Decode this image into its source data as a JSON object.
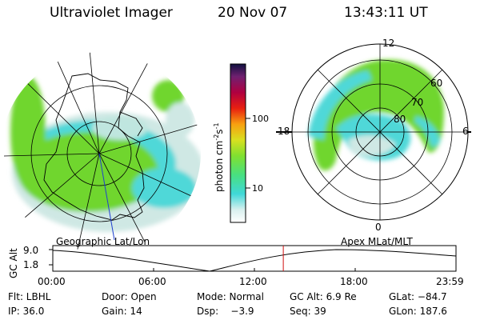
{
  "header": {
    "instrument": "Ultraviolet Imager",
    "date": "20 Nov 07",
    "time": "13:43:11 UT"
  },
  "colorbar": {
    "unit_label": "photon cm",
    "unit_sup1": "-2",
    "unit_mid": "s",
    "unit_sup2": "-1",
    "ticks": [
      {
        "label": "100",
        "value": 100
      },
      {
        "label": "10",
        "value": 10
      }
    ]
  },
  "right_panel": {
    "mlt_labels": {
      "top": "12",
      "left": "18",
      "right": "6",
      "bottom": "0"
    },
    "lat_labels": [
      "60",
      "70",
      "80"
    ]
  },
  "panel_labels": {
    "left": "Geographic Lat/Lon",
    "right": "Apex MLat/MLT"
  },
  "orbit_plot": {
    "y_label": "GC Alt",
    "y_ticks": [
      "9.0",
      "1.8"
    ],
    "x_ticks": [
      "00:00",
      "06:00",
      "12:00",
      "18:00",
      "23:59"
    ],
    "current_time_hours": 13.72
  },
  "info": {
    "row1": {
      "flt": "Flt: LBHL",
      "door": "Door: Open",
      "mode": "Mode: Normal",
      "gcalt": "GC Alt: 6.9 Re",
      "glat": "GLat: −84.7"
    },
    "row2": {
      "ip": "IP: 36.0",
      "gain": "Gain: 14",
      "dsp": "Dsp:    −3.9",
      "seq": "Seq: 39",
      "glon": "GLon: 187.6"
    }
  },
  "colors": {
    "aurora_green": "#6fd62e",
    "aurora_cyan": "#4fd8d8",
    "aurora_pale": "#cfe8e4",
    "marker_red": "#d01010"
  }
}
